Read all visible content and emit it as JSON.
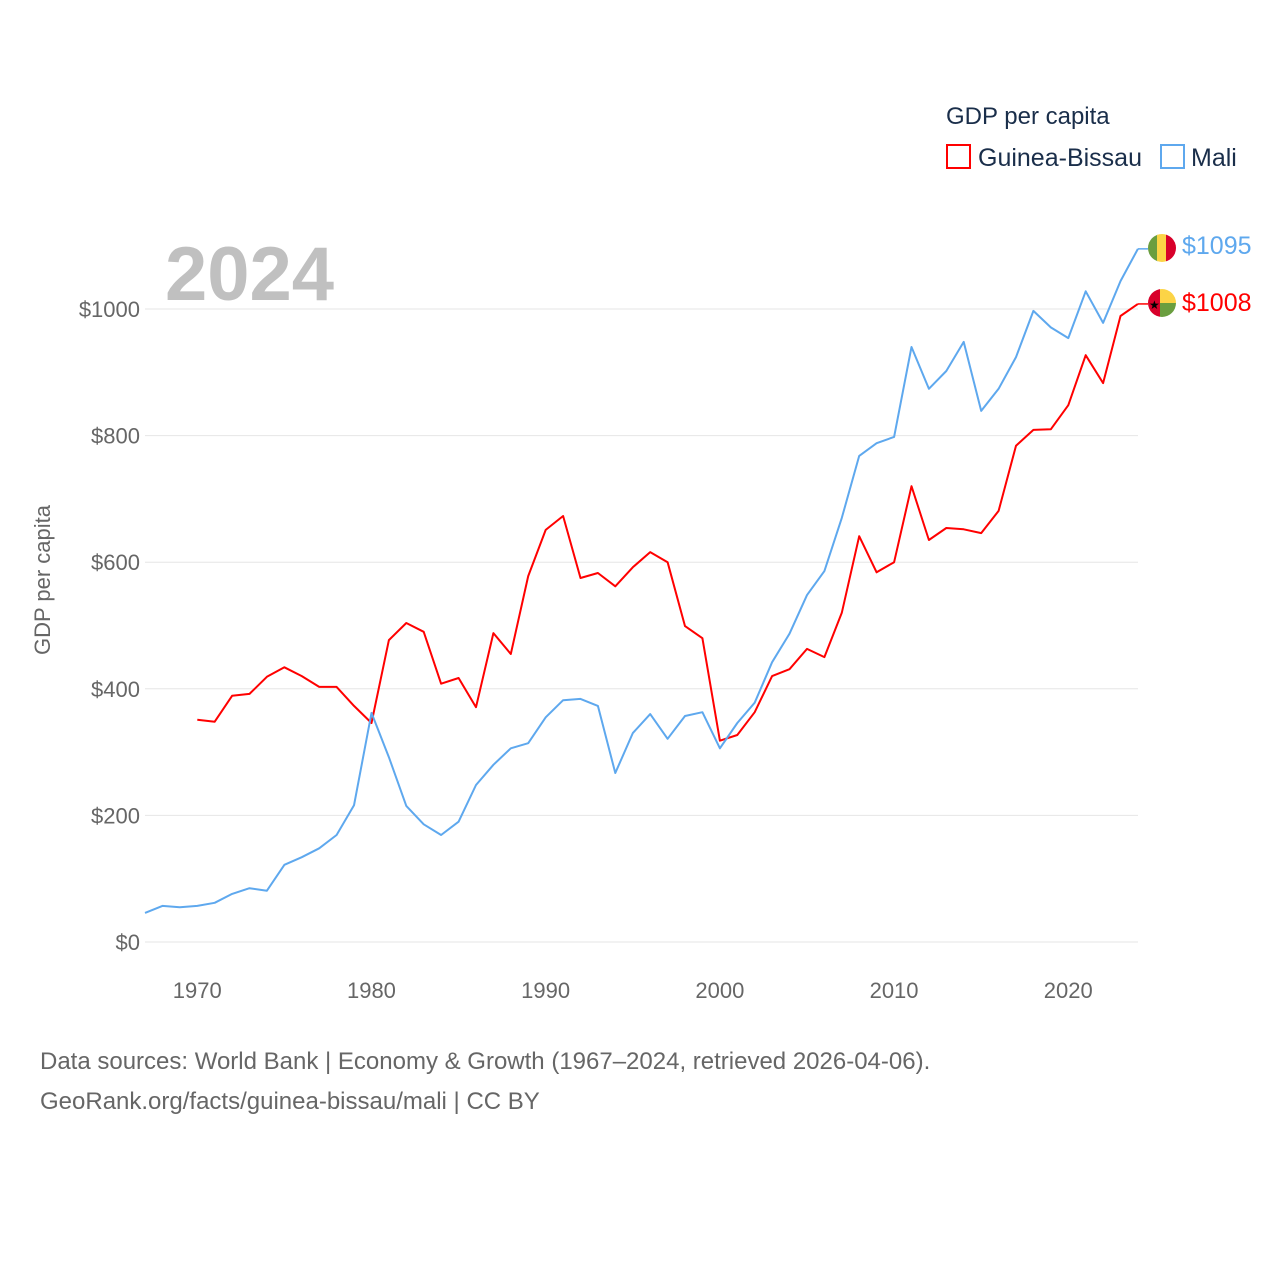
{
  "chart_data": {
    "type": "line",
    "title": "GDP per capita",
    "ylabel": "GDP per capita",
    "xlabel": "",
    "year_label": "2024",
    "xlim": [
      1967,
      2024
    ],
    "ylim": [
      0,
      1100
    ],
    "x_ticks": [
      1970,
      1980,
      1990,
      2000,
      2010,
      2020
    ],
    "y_ticks": [
      0,
      200,
      400,
      600,
      800,
      1000
    ],
    "y_tick_labels": [
      "$0",
      "$200",
      "$400",
      "$600",
      "$800",
      "$1000"
    ],
    "grid": true,
    "legend_position": "top-right",
    "series": [
      {
        "name": "Guinea-Bissau",
        "color": "#ff0000",
        "end_label": "$1008",
        "start_year": 1970,
        "values": [
          351,
          348,
          389,
          392,
          419,
          434,
          420,
          403,
          403,
          373,
          346,
          477,
          504,
          490,
          408,
          417,
          371,
          488,
          455,
          578,
          651,
          673,
          575,
          583,
          562,
          592,
          616,
          600,
          499,
          480,
          318,
          327,
          363,
          420,
          431,
          463,
          450,
          520,
          641,
          584,
          600,
          720,
          635,
          654,
          652,
          646,
          681,
          784,
          809,
          810,
          848,
          927,
          883,
          989,
          1008
        ]
      },
      {
        "name": "Mali",
        "color": "#5ea8ee",
        "end_label": "$1095",
        "start_year": 1967,
        "values": [
          46,
          57,
          55,
          57,
          62,
          76,
          85,
          81,
          122,
          134,
          148,
          169,
          216,
          362,
          292,
          215,
          186,
          169,
          190,
          248,
          280,
          306,
          314,
          355,
          382,
          384,
          373,
          267,
          330,
          360,
          321,
          357,
          363,
          306,
          346,
          378,
          442,
          487,
          548,
          586,
          670,
          768,
          788,
          798,
          940,
          874,
          902,
          948,
          839,
          874,
          924,
          997,
          971,
          954,
          1028,
          978,
          1044,
          1095
        ]
      }
    ]
  },
  "footer": {
    "line1": "Data sources: World Bank | Economy & Growth (1967–2024, retrieved 2026-04-06).",
    "line2": "GeoRank.org/facts/guinea-bissau/mali | CC BY"
  }
}
